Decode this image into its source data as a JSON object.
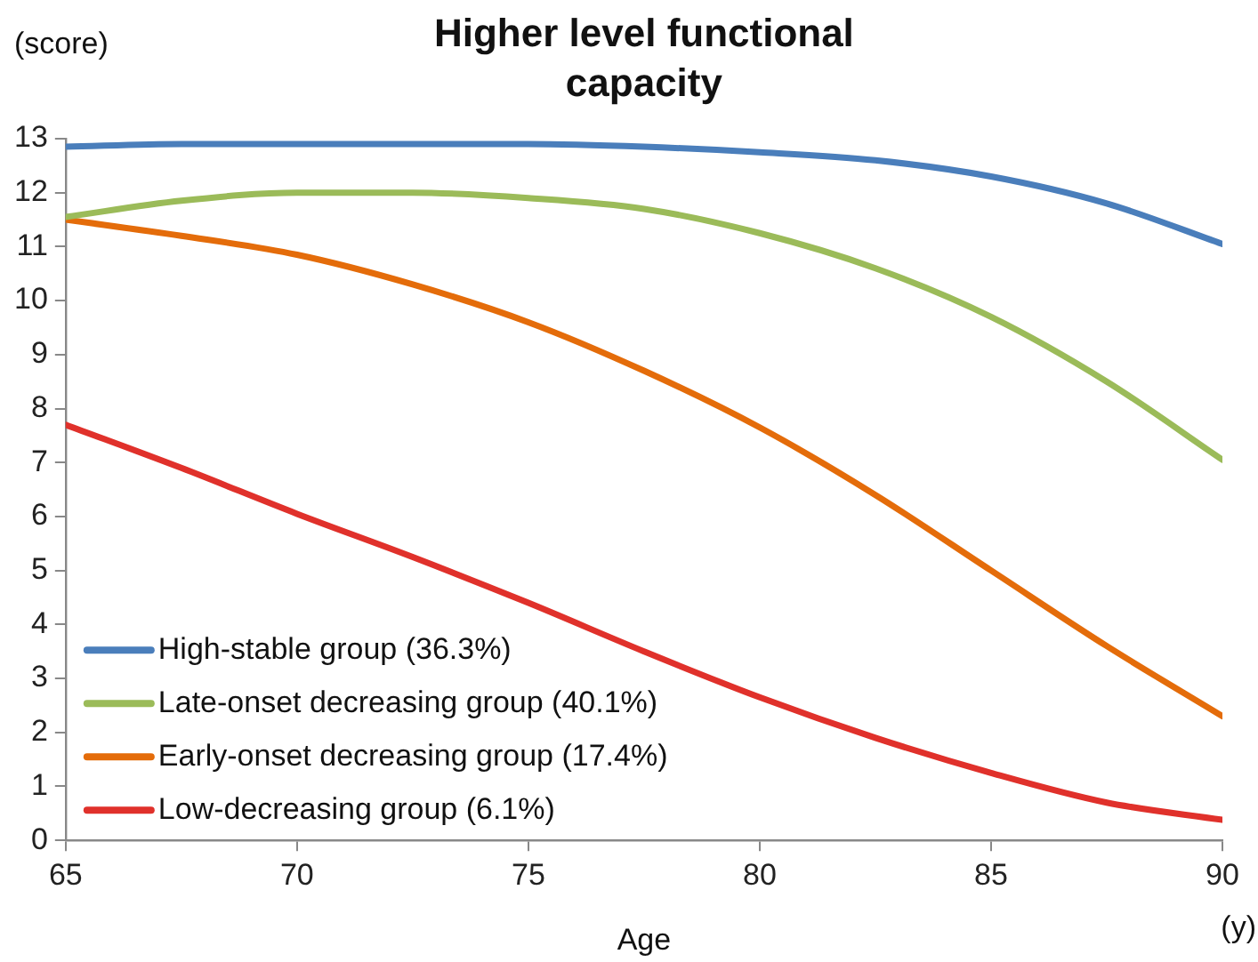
{
  "chart_data": {
    "type": "line",
    "title": "Higher level functional capacity",
    "ylabel": "(score)",
    "xlabel": "Age",
    "annotations": [
      "(y)"
    ],
    "x": [
      65,
      67.5,
      70,
      72.5,
      75,
      77.5,
      80,
      82.5,
      85,
      87.5,
      90
    ],
    "series": [
      {
        "name": "High-stable group (36.3%)",
        "color": "#4a7ebb",
        "values": [
          12.85,
          12.9,
          12.9,
          12.9,
          12.9,
          12.85,
          12.75,
          12.6,
          12.3,
          11.8,
          11.05
        ]
      },
      {
        "name": "Late-onset decreasing group (40.1%)",
        "color": "#9bbb59",
        "values": [
          11.55,
          11.85,
          12.0,
          12.0,
          11.9,
          11.7,
          11.25,
          10.6,
          9.7,
          8.5,
          7.05
        ]
      },
      {
        "name": "Early-onset decreasing group (17.4%)",
        "color": "#e46c0a",
        "values": [
          11.5,
          11.2,
          10.85,
          10.3,
          9.6,
          8.7,
          7.65,
          6.4,
          5.0,
          3.6,
          2.3
        ]
      },
      {
        "name": "Low-decreasing group (6.1%)",
        "color": "#e0312b",
        "values": [
          7.7,
          6.9,
          6.05,
          5.25,
          4.4,
          3.5,
          2.65,
          1.9,
          1.25,
          0.7,
          0.38
        ]
      }
    ],
    "xlim": [
      65,
      90
    ],
    "xticks": [
      65,
      70,
      75,
      80,
      85,
      90
    ],
    "ylim": [
      0,
      13
    ],
    "yticks": [
      0,
      1,
      2,
      3,
      4,
      5,
      6,
      7,
      8,
      9,
      10,
      11,
      12,
      13
    ],
    "grid": false,
    "legend": "bottom left",
    "marker": "none",
    "line_style": "solid"
  }
}
